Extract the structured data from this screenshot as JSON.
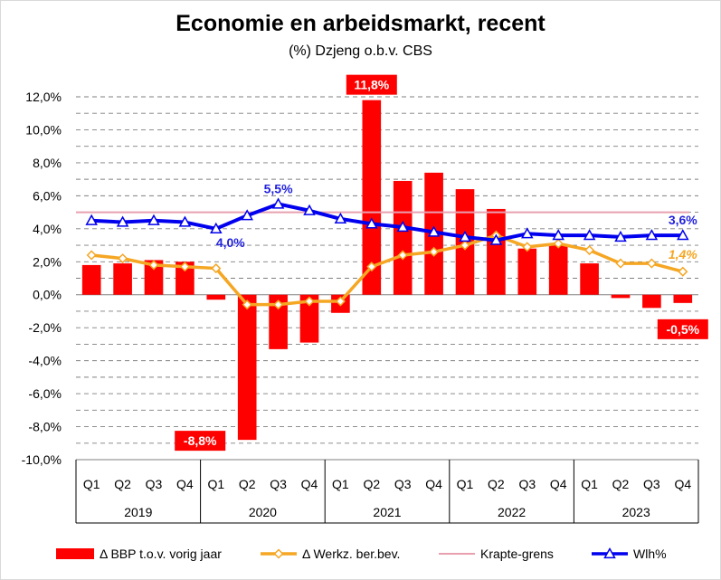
{
  "chart_data": {
    "type": "bar",
    "title": "Economie en arbeidsmarkt, recent",
    "subtitle": "(%) Dzjeng o.b.v. CBS",
    "ylim": [
      -10,
      12
    ],
    "y_ticks": [
      "-10,0%",
      "-8,0%",
      "-6,0%",
      "-4,0%",
      "-2,0%",
      "0,0%",
      "2,0%",
      "4,0%",
      "6,0%",
      "8,0%",
      "10,0%",
      "12,0%"
    ],
    "grid": true,
    "legend_position": "bottom",
    "years": [
      "2019",
      "2020",
      "2021",
      "2022",
      "2023"
    ],
    "categories": [
      "Q1",
      "Q2",
      "Q3",
      "Q4",
      "Q1",
      "Q2",
      "Q3",
      "Q4",
      "Q1",
      "Q2",
      "Q3",
      "Q4",
      "Q1",
      "Q2",
      "Q3",
      "Q4",
      "Q1",
      "Q2",
      "Q3",
      "Q4"
    ],
    "series": [
      {
        "name": "Δ BBP t.o.v. vorig jaar",
        "type": "bar",
        "color": "#ff0000",
        "values": [
          1.8,
          1.9,
          2.1,
          2.0,
          -0.3,
          -8.8,
          -3.3,
          -2.9,
          -1.1,
          11.8,
          6.9,
          7.4,
          6.4,
          5.2,
          2.8,
          3.0,
          1.9,
          -0.2,
          -0.8,
          -0.5
        ]
      },
      {
        "name": "Δ Werkz. ber.bev.",
        "type": "line",
        "color": "#f5a623",
        "marker": "diamond",
        "values": [
          2.4,
          2.2,
          1.8,
          1.7,
          1.6,
          -0.6,
          -0.6,
          -0.4,
          -0.4,
          1.7,
          2.4,
          2.6,
          3.0,
          3.6,
          2.9,
          3.1,
          2.7,
          1.9,
          1.9,
          1.4
        ]
      },
      {
        "name": "Krapte-grens",
        "type": "line",
        "color": "#e8a0b0",
        "marker": "none",
        "values": [
          5.0,
          5.0,
          5.0,
          5.0,
          5.0,
          5.0,
          5.0,
          5.0,
          5.0,
          5.0,
          5.0,
          5.0,
          5.0,
          5.0,
          5.0,
          5.0,
          5.0,
          5.0,
          5.0,
          5.0
        ]
      },
      {
        "name": "Wlh%",
        "type": "line",
        "color": "#0000ee",
        "marker": "triangle",
        "values": [
          4.5,
          4.4,
          4.5,
          4.4,
          4.0,
          4.8,
          5.5,
          5.1,
          4.6,
          4.3,
          4.1,
          3.8,
          3.5,
          3.3,
          3.7,
          3.6,
          3.6,
          3.5,
          3.6,
          3.6
        ]
      }
    ],
    "annotations": [
      {
        "text": "11,8%",
        "series": 0,
        "index": 9,
        "style": "red-box",
        "pos": "above"
      },
      {
        "text": "-8,8%",
        "series": 0,
        "index": 5,
        "style": "red-box",
        "pos": "left-bottom"
      },
      {
        "text": "-0,5%",
        "series": 0,
        "index": 19,
        "style": "red-box",
        "pos": "below"
      },
      {
        "text": "5,5%",
        "series": 3,
        "index": 6,
        "style": "blue-text",
        "pos": "above"
      },
      {
        "text": "4,0%",
        "series": 3,
        "index": 4,
        "style": "blue-text",
        "pos": "below-right"
      },
      {
        "text": "3,6%",
        "series": 3,
        "index": 19,
        "style": "blue-text",
        "pos": "above"
      },
      {
        "text": "1,4%",
        "series": 1,
        "index": 19,
        "style": "orange-italic",
        "pos": "above"
      }
    ]
  }
}
